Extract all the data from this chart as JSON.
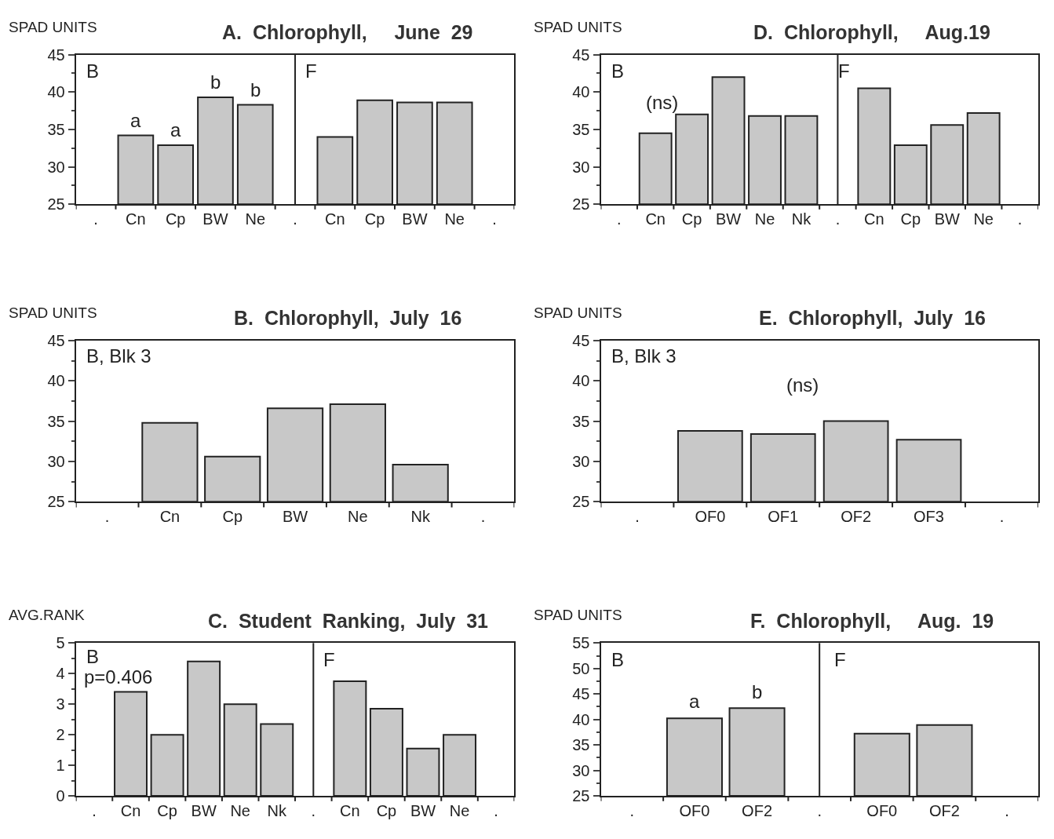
{
  "chart_data": [
    {
      "type": "bar",
      "title": "A.  Chlorophyll,     June  29",
      "ylabel": "SPAD UNITS",
      "categories": [
        ".",
        "Cn",
        "Cp",
        "BW",
        "Ne",
        ".",
        "Cn",
        "Cp",
        "BW",
        "Ne",
        "."
      ],
      "values": [
        null,
        34.2,
        32.9,
        39.3,
        38.3,
        null,
        34.0,
        38.9,
        38.6,
        38.6,
        null
      ],
      "color": "#c8c8c8",
      "ylim": [
        25,
        45
      ],
      "yticks": [
        25,
        30,
        35,
        40,
        45
      ],
      "annotations": [
        "B",
        "F",
        "a",
        "a",
        "b",
        "b"
      ]
    },
    {
      "type": "bar",
      "title": "D.  Chlorophyll,     Aug.19",
      "ylabel": "SPAD UNITS",
      "categories": [
        ".",
        "Cn",
        "Cp",
        "BW",
        "Ne",
        "Nk",
        ".",
        "Cn",
        "Cp",
        "BW",
        "Ne",
        "."
      ],
      "values": [
        null,
        34.5,
        37.0,
        42.0,
        36.8,
        36.8,
        null,
        40.5,
        32.9,
        35.6,
        37.2,
        null
      ],
      "color": "#c8c8c8",
      "ylim": [
        25,
        45
      ],
      "yticks": [
        25,
        30,
        35,
        40,
        45
      ],
      "annotations": [
        "B",
        "F",
        "(ns)"
      ]
    },
    {
      "type": "bar",
      "title": "B.  Chlorophyll,  July  16",
      "ylabel": "SPAD UNITS",
      "categories": [
        ".",
        "Cn",
        "Cp",
        "BW",
        "Ne",
        "Nk",
        "."
      ],
      "values": [
        null,
        34.8,
        30.6,
        36.6,
        37.1,
        29.6,
        null
      ],
      "color": "#c8c8c8",
      "ylim": [
        25,
        45
      ],
      "yticks": [
        25,
        30,
        35,
        40,
        45
      ],
      "annotations": [
        "B, Blk 3"
      ]
    },
    {
      "type": "bar",
      "title": "E.  Chlorophyll,  July  16",
      "ylabel": "SPAD UNITS",
      "categories": [
        ".",
        "OF0",
        "OF1",
        "OF2",
        "OF3",
        "."
      ],
      "values": [
        null,
        33.8,
        33.4,
        35.0,
        32.7,
        null
      ],
      "color": "#c8c8c8",
      "ylim": [
        25,
        45
      ],
      "yticks": [
        25,
        30,
        35,
        40,
        45
      ],
      "annotations": [
        "B, Blk 3",
        "(ns)"
      ]
    },
    {
      "type": "bar",
      "title": "C.  Student  Ranking,  July  31",
      "ylabel": "AVG.RANK",
      "categories": [
        ".",
        "Cn",
        "Cp",
        "BW",
        "Ne",
        "Nk",
        ".",
        "Cn",
        "Cp",
        "BW",
        "Ne",
        "."
      ],
      "values": [
        null,
        3.4,
        2.0,
        4.4,
        3.0,
        2.35,
        null,
        3.75,
        2.85,
        1.55,
        2.0,
        null
      ],
      "color": "#c8c8c8",
      "ylim": [
        0,
        5
      ],
      "yticks": [
        0,
        1,
        2,
        3,
        4,
        5
      ],
      "annotations": [
        "B",
        "F",
        "p=0.406"
      ]
    },
    {
      "type": "bar",
      "title": "F.  Chlorophyll,     Aug.  19",
      "ylabel": "SPAD UNITS",
      "categories": [
        ".",
        "OF0",
        "OF2",
        ".",
        "OF0",
        "OF2",
        "."
      ],
      "values": [
        null,
        40.2,
        42.2,
        null,
        37.2,
        38.9,
        null
      ],
      "color": "#c8c8c8",
      "ylim": [
        25,
        55
      ],
      "yticks": [
        25,
        30,
        35,
        40,
        45,
        50,
        55
      ],
      "annotations": [
        "B",
        "F",
        "a",
        "b"
      ]
    }
  ]
}
